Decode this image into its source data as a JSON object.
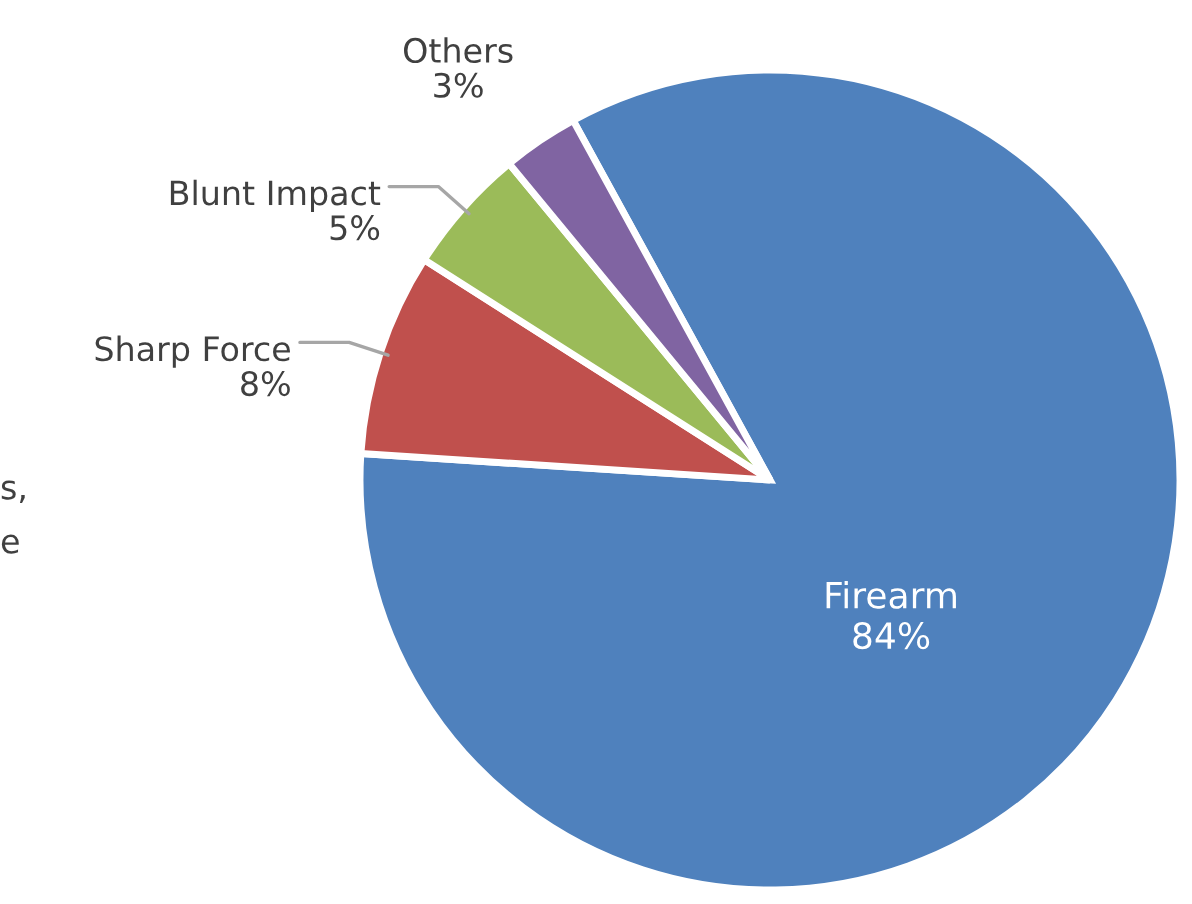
{
  "chart_data": {
    "type": "pie",
    "categories": [
      "Firearm",
      "Sharp Force",
      "Blunt Impact",
      "Others"
    ],
    "values": [
      84,
      8,
      5,
      3
    ],
    "colors": [
      "#4f81bd",
      "#c0504d",
      "#9bbb59",
      "#8064a2"
    ],
    "value_labels": [
      "84%",
      "8%",
      "5%",
      "3%"
    ],
    "annotations": [
      "s,",
      "e"
    ]
  }
}
